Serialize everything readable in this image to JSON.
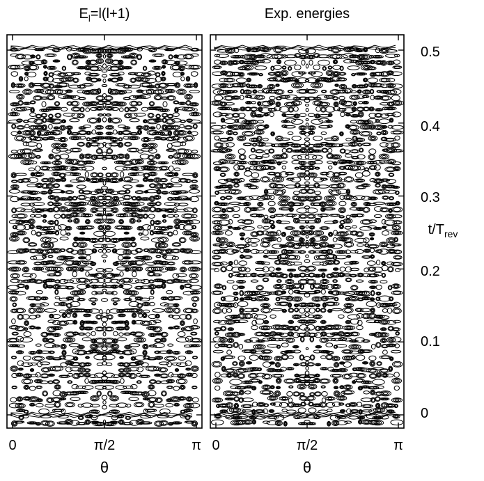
{
  "chart_data": [
    {
      "type": "contour",
      "title": "E_l=l(l+1)",
      "title_parts": {
        "base": "E",
        "sub": "l",
        "rest": "=l(l+1)"
      },
      "xlabel": "θ",
      "xticks": [
        "0",
        "π/2",
        "π"
      ],
      "xlim": [
        0,
        3.14159
      ],
      "ylim": [
        0,
        0.5
      ],
      "pattern_seed": 7,
      "style": "model"
    },
    {
      "type": "contour",
      "title": "Exp. energies",
      "xlabel": "θ",
      "xticks": [
        "0",
        "π/2",
        "π"
      ],
      "xlim": [
        0,
        3.14159
      ],
      "ylim": [
        0,
        0.5
      ],
      "pattern_seed": 23,
      "style": "experiment"
    }
  ],
  "shared_y": {
    "label_base": "t/T",
    "label_sub": "rev",
    "ticks": [
      "0",
      "0.1",
      "0.2",
      "0.3",
      "0.4",
      "0.5"
    ],
    "tick_values": [
      0,
      0.1,
      0.2,
      0.3,
      0.4,
      0.5
    ]
  },
  "colors": {
    "contour": "#000000",
    "frame": "#000000",
    "background": "#ffffff"
  }
}
